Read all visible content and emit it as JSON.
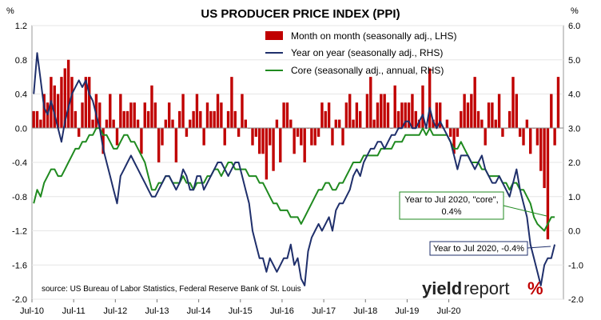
{
  "chart_data": {
    "type": "bar",
    "title": "US PRODUCER PRICE INDEX (PPI)",
    "unit_left": "%",
    "unit_right": "%",
    "x_ticks": [
      "Jul-10",
      "Jul-11",
      "Jul-12",
      "Jul-13",
      "Jul-14",
      "Jul-15",
      "Jul-16",
      "Jul-17",
      "Jul-18",
      "Jul-19",
      "Jul-20"
    ],
    "left_axis": {
      "min": -2.0,
      "max": 1.2,
      "step": 0.4,
      "labels": [
        "1.2",
        "0.8",
        "0.4",
        "0.0",
        "-0.4",
        "-0.8",
        "-1.2",
        "-1.6",
        "-2.0"
      ]
    },
    "right_axis": {
      "min": -2.0,
      "max": 6.0,
      "step": 1.0,
      "labels": [
        "6.0",
        "5.0",
        "4.0",
        "3.0",
        "2.0",
        "1.0",
        "0.0",
        "-1.0",
        "-2.0"
      ]
    },
    "legend": [
      {
        "label": "Month on month (seasonally adj., LHS)",
        "color": "#c00000",
        "kind": "bar"
      },
      {
        "label": "Year on year (seasonally adj., RHS)",
        "color": "#1f2f6b",
        "kind": "line"
      },
      {
        "label": "Core (seasonally adj., annual, RHS)",
        "color": "#1f8a1f",
        "kind": "line"
      }
    ],
    "start": "Jul-10",
    "series": [
      {
        "name": "Month on month (seasonally adj., LHS)",
        "axis": "left",
        "values": [
          0.2,
          0.2,
          0.1,
          0.4,
          0.3,
          0.6,
          0.5,
          0.4,
          0.6,
          0.7,
          0.8,
          0.6,
          0.2,
          -0.1,
          0.3,
          0.6,
          0.6,
          0.1,
          0.4,
          0.3,
          -0.3,
          0.1,
          0.4,
          0.1,
          -0.2,
          0.4,
          0.2,
          0.2,
          0.3,
          0.3,
          0.1,
          -0.3,
          0.3,
          0.2,
          0.5,
          0.3,
          -0.4,
          -0.2,
          0.1,
          0.3,
          0.1,
          -0.4,
          0.2,
          0.4,
          -0.1,
          0.1,
          0.2,
          0.4,
          0.2,
          -0.2,
          0.3,
          0.2,
          0.2,
          0.4,
          0.3,
          -0.2,
          0.2,
          0.6,
          0.2,
          -0.1,
          0.4,
          0.1,
          0.0,
          -0.2,
          -0.1,
          -0.3,
          -0.3,
          -0.6,
          -0.2,
          -0.5,
          0.1,
          -0.4,
          0.3,
          0.3,
          0.1,
          -0.3,
          -0.1,
          -0.2,
          -0.4,
          0.0,
          -0.2,
          -0.2,
          -0.1,
          0.3,
          0.2,
          0.3,
          -0.2,
          0.1,
          0.1,
          -0.2,
          0.3,
          0.4,
          0.1,
          0.3,
          0.2,
          0.0,
          0.4,
          0.6,
          0.1,
          0.3,
          0.4,
          0.4,
          0.3,
          0.0,
          0.5,
          0.2,
          0.3,
          0.3,
          0.3,
          0.4,
          0.2,
          0.1,
          0.5,
          0.0,
          0.7,
          0.1,
          0.3,
          0.3,
          0.0,
          0.1,
          -0.1,
          -0.3,
          -0.1,
          0.2,
          0.4,
          0.3,
          0.4,
          0.6,
          0.2,
          0.1,
          -0.2,
          0.3,
          0.3,
          0.1,
          0.4,
          -0.1,
          0.0,
          0.2,
          0.6,
          0.4,
          -0.1,
          -0.2,
          0.1,
          -0.3,
          0.0,
          -0.2,
          -0.5,
          -0.7,
          -1.3,
          0.4,
          -0.2,
          0.6
        ]
      },
      {
        "name": "Year on year (seasonally adj., RHS)",
        "axis": "right",
        "values": [
          4.0,
          5.2,
          4.4,
          3.6,
          3.4,
          3.8,
          3.4,
          3.0,
          2.6,
          3.2,
          3.6,
          4.0,
          4.2,
          4.4,
          4.2,
          4.4,
          4.0,
          3.8,
          3.4,
          3.0,
          2.4,
          2.0,
          1.6,
          1.2,
          0.8,
          1.6,
          1.8,
          2.0,
          2.2,
          2.0,
          1.8,
          1.6,
          1.4,
          1.2,
          1.0,
          1.0,
          1.2,
          1.4,
          1.6,
          1.6,
          1.4,
          1.2,
          1.4,
          1.8,
          1.6,
          1.2,
          1.2,
          1.6,
          1.6,
          1.2,
          1.4,
          1.6,
          1.8,
          2.0,
          2.0,
          1.8,
          1.6,
          1.8,
          2.0,
          2.0,
          1.6,
          1.2,
          0.8,
          0.0,
          -0.4,
          -0.8,
          -0.8,
          -1.2,
          -0.8,
          -1.0,
          -1.2,
          -1.0,
          -0.8,
          -0.8,
          -0.4,
          -1.0,
          -0.8,
          -1.4,
          -1.6,
          -0.6,
          -0.2,
          0.0,
          0.2,
          0.0,
          0.2,
          0.4,
          0.0,
          0.6,
          0.8,
          0.8,
          1.0,
          1.2,
          1.6,
          1.8,
          1.6,
          2.0,
          2.2,
          2.4,
          2.4,
          2.6,
          2.6,
          2.4,
          2.6,
          2.8,
          2.8,
          3.0,
          3.0,
          3.2,
          3.2,
          3.0,
          3.0,
          3.2,
          3.4,
          3.0,
          3.6,
          3.2,
          3.0,
          3.2,
          3.0,
          2.8,
          2.6,
          2.2,
          1.8,
          2.2,
          2.2,
          2.2,
          2.0,
          1.8,
          2.0,
          2.2,
          1.8,
          1.6,
          1.4,
          1.4,
          1.6,
          1.4,
          1.2,
          1.0,
          1.4,
          1.8,
          1.2,
          0.8,
          0.4,
          -0.4,
          -0.8,
          -1.2,
          -1.6,
          -1.0,
          -0.8,
          -0.8,
          -0.4
        ]
      },
      {
        "name": "Core (seasonally adj., annual, RHS)",
        "axis": "right",
        "values": [
          0.8,
          1.2,
          1.0,
          1.4,
          1.6,
          1.8,
          1.8,
          1.6,
          1.6,
          1.8,
          2.0,
          2.2,
          2.4,
          2.4,
          2.6,
          2.6,
          2.8,
          2.8,
          3.0,
          3.0,
          2.8,
          2.8,
          2.6,
          2.4,
          2.4,
          2.6,
          2.8,
          2.8,
          2.6,
          2.6,
          2.4,
          2.2,
          2.0,
          1.6,
          1.2,
          1.2,
          1.4,
          1.4,
          1.6,
          1.6,
          1.4,
          1.4,
          1.4,
          1.6,
          1.4,
          1.4,
          1.2,
          1.4,
          1.4,
          1.4,
          1.6,
          1.6,
          1.8,
          1.8,
          1.6,
          1.8,
          2.0,
          2.0,
          1.8,
          1.8,
          1.8,
          1.8,
          1.6,
          1.6,
          1.6,
          1.4,
          1.4,
          1.2,
          1.0,
          0.8,
          0.8,
          0.6,
          0.6,
          0.6,
          0.4,
          0.4,
          0.4,
          0.2,
          0.4,
          0.6,
          0.8,
          1.0,
          1.2,
          1.2,
          1.4,
          1.4,
          1.2,
          1.2,
          1.4,
          1.4,
          1.6,
          1.8,
          2.0,
          2.0,
          2.0,
          2.2,
          2.2,
          2.2,
          2.2,
          2.2,
          2.4,
          2.4,
          2.4,
          2.4,
          2.6,
          2.6,
          2.6,
          2.8,
          2.8,
          2.8,
          2.8,
          2.8,
          3.0,
          2.8,
          3.0,
          2.8,
          2.8,
          2.8,
          2.8,
          2.8,
          2.6,
          2.4,
          2.4,
          2.6,
          2.4,
          2.2,
          2.0,
          2.0,
          2.0,
          1.8,
          1.8,
          1.6,
          1.6,
          1.6,
          1.6,
          1.4,
          1.4,
          1.2,
          1.4,
          1.4,
          1.2,
          1.2,
          1.0,
          0.8,
          0.4,
          0.2,
          0.1,
          0.0,
          0.2,
          0.4,
          0.4
        ]
      }
    ],
    "annotations": [
      {
        "text_lines": [
          "Year to Jul 2020, \"core\",",
          "0.4%"
        ],
        "color": "#1f8a1f"
      },
      {
        "text_lines": [
          "Year to Jul 2020, -0.4%"
        ],
        "color": "#1f2f6b"
      }
    ],
    "source": "source: US Bureau of Labor Statistics, Federal Reserve Bank of St. Louis"
  },
  "logo": {
    "part1": "yield",
    "part2": "report",
    "part3": "%"
  }
}
